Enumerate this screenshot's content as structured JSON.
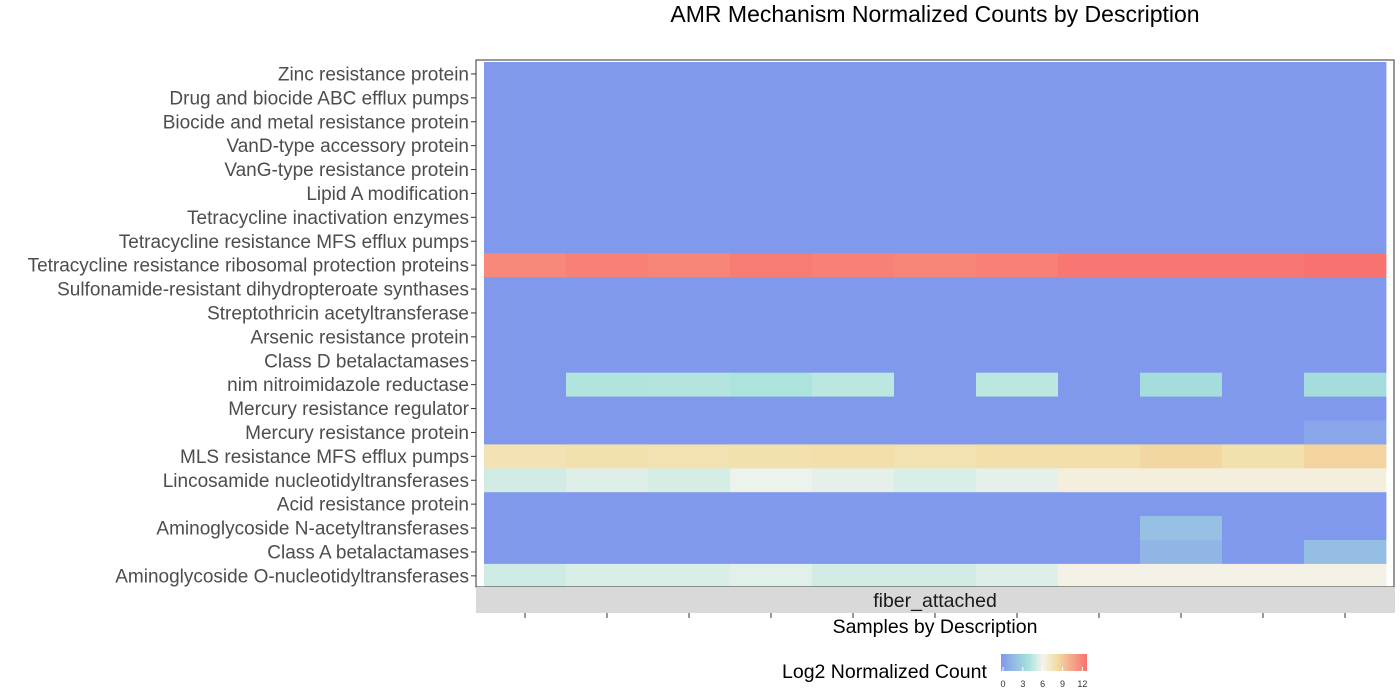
{
  "chart_data": {
    "type": "heatmap",
    "title": "AMR Mechanism Normalized Counts by Description",
    "xlabel": "Samples by Description",
    "ylabel": "",
    "facet": "fiber_attached",
    "x": [
      "",
      "",
      "",
      "",
      "",
      "",
      "",
      "",
      "",
      "",
      ""
    ],
    "y": [
      "Zinc resistance protein",
      "Drug and biocide ABC efflux pumps",
      "Biocide and metal resistance protein",
      "VanD-type accessory protein",
      "VanG-type resistance protein",
      "Lipid A modification",
      "Tetracycline inactivation enzymes",
      "Tetracycline resistance MFS efflux pumps",
      "Tetracycline resistance ribosomal protection proteins",
      "Sulfonamide-resistant dihydropteroate synthases",
      "Streptothricin acetyltransferase",
      "Arsenic resistance protein",
      "Class D betalactamases",
      "nim nitroimidazole reductase",
      "Mercury resistance regulator",
      "Mercury resistance protein",
      "MLS resistance MFS efflux pumps",
      "Lincosamide nucleotidyltransferases",
      "Acid resistance protein",
      "Aminoglycoside N-acetyltransferases",
      "Class A betalactamases",
      "Aminoglycoside O-nucleotidyltransferases"
    ],
    "values": [
      [
        0,
        0,
        0,
        0,
        0,
        0,
        0,
        0,
        0,
        0,
        0
      ],
      [
        0,
        0,
        0,
        0,
        0,
        0,
        0,
        0,
        0,
        0,
        0
      ],
      [
        0,
        0,
        0,
        0,
        0,
        0,
        0,
        0,
        0,
        0,
        0
      ],
      [
        0,
        0,
        0,
        0,
        0,
        0,
        0,
        0,
        0,
        0,
        0
      ],
      [
        0,
        0,
        0,
        0,
        0,
        0,
        0,
        0,
        0,
        0,
        0
      ],
      [
        0,
        0,
        0,
        0,
        0,
        0,
        0,
        0,
        0,
        0,
        0
      ],
      [
        0,
        0,
        0,
        0,
        0,
        0,
        0,
        0,
        0,
        0,
        0
      ],
      [
        0,
        0,
        0,
        0,
        0,
        0,
        0,
        0,
        0,
        0,
        0
      ],
      [
        11.5,
        11.8,
        11.6,
        12.0,
        11.8,
        11.6,
        11.8,
        12.2,
        12.2,
        12.2,
        12.4
      ],
      [
        0,
        0,
        0,
        0,
        0,
        0,
        0,
        0,
        0,
        0,
        0
      ],
      [
        0,
        0,
        0,
        0,
        0,
        0,
        0,
        0,
        0,
        0,
        0
      ],
      [
        0,
        0,
        0,
        0,
        0,
        0,
        0,
        0,
        0,
        0,
        0
      ],
      [
        0,
        0,
        0,
        0,
        0,
        0,
        0,
        0,
        0,
        0,
        0
      ],
      [
        0,
        4.2,
        4.3,
        4.1,
        4.5,
        0,
        4.5,
        0,
        3.7,
        0,
        3.7
      ],
      [
        0,
        0,
        0,
        0,
        0,
        0,
        0,
        0,
        0,
        0,
        0
      ],
      [
        0,
        0,
        0,
        0,
        0,
        0,
        0,
        0,
        0,
        0,
        0.7
      ],
      [
        7.6,
        7.8,
        7.7,
        7.8,
        7.9,
        7.7,
        7.9,
        7.9,
        8.3,
        7.8,
        8.4
      ],
      [
        5.1,
        5.4,
        5.2,
        5.8,
        5.6,
        5.3,
        5.6,
        6.5,
        6.5,
        6.5,
        6.5
      ],
      [
        0,
        0,
        0,
        0,
        0,
        0,
        0,
        0,
        0,
        0,
        0
      ],
      [
        0,
        0,
        0,
        0,
        0,
        0,
        0,
        0,
        2.2,
        0,
        0
      ],
      [
        0,
        0,
        0,
        0,
        0,
        0,
        0,
        0,
        1.6,
        0,
        2.0
      ],
      [
        5.0,
        5.3,
        5.3,
        5.5,
        5.1,
        5.1,
        5.4,
        6.2,
        6.2,
        6.2,
        6.2
      ]
    ],
    "color_scale": {
      "stops": [
        {
          "value": 0,
          "color": "#8199ec"
        },
        {
          "value": 4,
          "color": "#a8e2db"
        },
        {
          "value": 6,
          "color": "#f4f4ee"
        },
        {
          "value": 8,
          "color": "#f2dea6"
        },
        {
          "value": 12.4,
          "color": "#f8726f"
        }
      ],
      "range": [
        0,
        12.4
      ]
    },
    "legend": {
      "title": "Log2 Normalized Count",
      "ticks": [
        "0",
        "3",
        "6",
        "9",
        "12"
      ],
      "tick_values": [
        0,
        3,
        6,
        9,
        12
      ],
      "position": "bottom"
    },
    "grid": false
  }
}
